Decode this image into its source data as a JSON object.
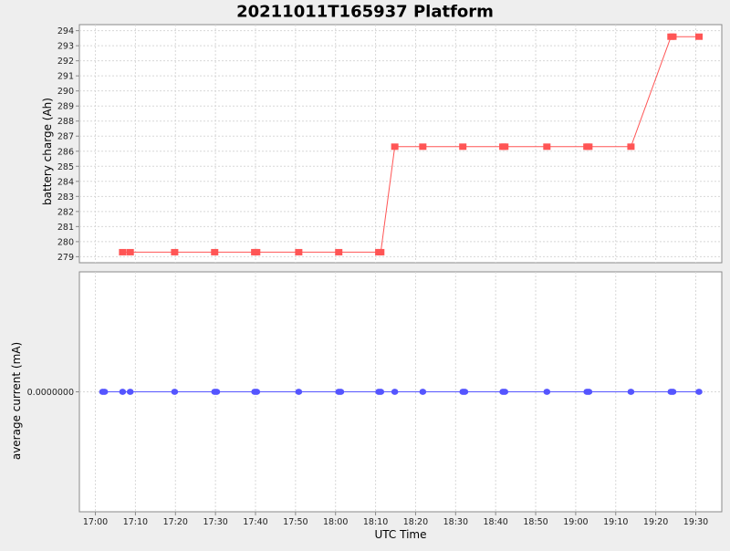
{
  "chart_data": [
    {
      "type": "line",
      "title": "20211011T165937 Platform",
      "ylabel": "battery charge (Ah)",
      "ylim": [
        278.6,
        294.4
      ],
      "yticks": [
        "279",
        "280",
        "281",
        "282",
        "283",
        "284",
        "285",
        "286",
        "287",
        "288",
        "289",
        "290",
        "291",
        "292",
        "293",
        "294"
      ],
      "grid": true,
      "color": "#ff5555",
      "marker": "square",
      "x": [
        "17:06:48",
        "17:08:42",
        "17:19:48",
        "17:29:48",
        "17:39:48",
        "17:40:18",
        "17:50:48",
        "18:00:48",
        "18:10:48",
        "18:11:18",
        "18:14:48",
        "18:21:48",
        "18:31:48",
        "18:41:48",
        "18:42:18",
        "18:52:48",
        "19:02:48",
        "19:03:18",
        "19:13:48",
        "19:23:48",
        "19:24:18",
        "19:30:48"
      ],
      "y": [
        279.3,
        279.3,
        279.3,
        279.3,
        279.3,
        279.3,
        279.3,
        279.3,
        279.3,
        279.3,
        286.3,
        286.3,
        286.3,
        286.3,
        286.3,
        286.3,
        286.3,
        286.3,
        286.3,
        293.6,
        293.6,
        293.6
      ]
    },
    {
      "type": "line",
      "ylabel": "average current (mA)",
      "xlabel": "UTC Time",
      "ylim": [
        -1,
        1
      ],
      "yticks": [
        "0.0000000"
      ],
      "xlim": [
        "16:56:00",
        "19:36:30"
      ],
      "xticks": [
        "17:00",
        "17:10",
        "17:20",
        "17:30",
        "17:40",
        "17:50",
        "18:00",
        "18:10",
        "18:20",
        "18:30",
        "18:40",
        "18:50",
        "19:00",
        "19:10",
        "19:20",
        "19:30"
      ],
      "grid": true,
      "color": "#5555ff",
      "marker": "circle",
      "x": [
        "17:01:48",
        "17:02:18",
        "17:06:48",
        "17:08:42",
        "17:19:48",
        "17:29:48",
        "17:30:18",
        "17:39:48",
        "17:40:18",
        "17:50:48",
        "18:00:48",
        "18:01:18",
        "18:10:48",
        "18:11:18",
        "18:14:48",
        "18:21:48",
        "18:31:48",
        "18:32:18",
        "18:41:48",
        "18:42:18",
        "18:52:48",
        "19:02:48",
        "19:03:18",
        "19:13:48",
        "19:23:48",
        "19:24:18",
        "19:30:48"
      ],
      "y": [
        0,
        0,
        0,
        0,
        0,
        0,
        0,
        0,
        0,
        0,
        0,
        0,
        0,
        0,
        0,
        0,
        0,
        0,
        0,
        0,
        0,
        0,
        0,
        0,
        0,
        0,
        0
      ]
    }
  ]
}
